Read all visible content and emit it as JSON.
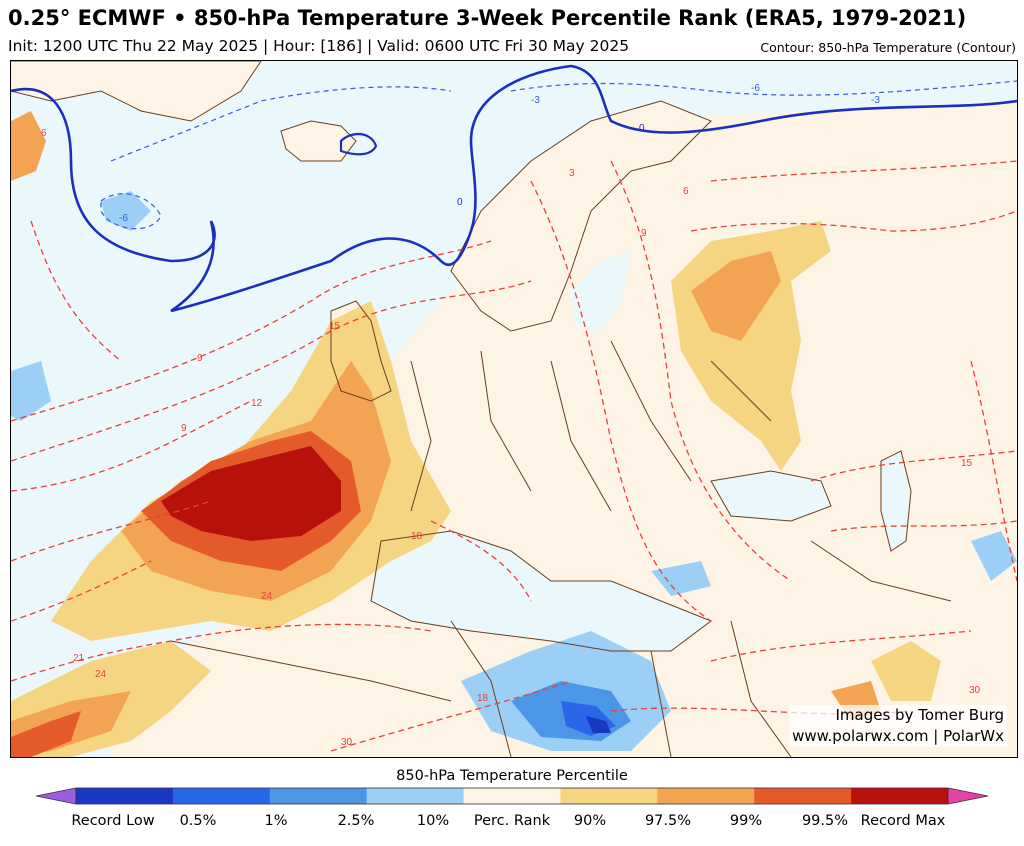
{
  "header": {
    "title": "0.25° ECMWF • 850-hPa Temperature 3-Week Percentile Rank (ERA5, 1979-2021)",
    "subtitle": "Init: 1200 UTC Thu 22 May 2025 | Hour: [186] | Valid: 0600 UTC Fri 30 May 2025",
    "contour_note": "Contour: 850-hPa Temperature (Contour)"
  },
  "map": {
    "credit_line1": "Images by Tomer Burg",
    "credit_line2": "www.polarwx.com | PolarWx",
    "contour_labels": [
      "-6",
      "-3",
      "-3",
      "0",
      "0",
      "3",
      "6",
      "9",
      "9",
      "12",
      "15",
      "15",
      "18",
      "18",
      "21",
      "24",
      "24",
      "30",
      "30",
      "-6",
      "6",
      "9"
    ]
  },
  "legend": {
    "title": "850-hPa Temperature Percentile",
    "colors": [
      "#a05ce0",
      "#1a37c4",
      "#2868e8",
      "#4c96e8",
      "#9ccff5",
      "#fdf4e6",
      "#f5d582",
      "#f3a452",
      "#e55a2b",
      "#b8110c",
      "#e442a8"
    ],
    "labels": [
      "Record Low",
      "0.5%",
      "1%",
      "2.5%",
      "10%",
      "Perc. Rank",
      "90%",
      "97.5%",
      "99%",
      "99.5%",
      "Record Max"
    ]
  }
}
